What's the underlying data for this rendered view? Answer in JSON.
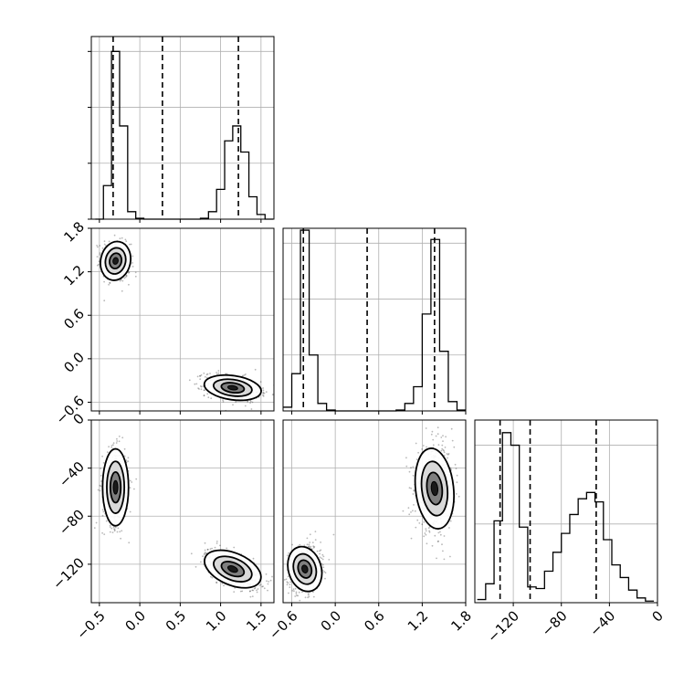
{
  "chart_data": {
    "type": "corner",
    "grid": true,
    "parameters": [
      {
        "ticks": [
          -0.5,
          0.0,
          0.5,
          1.0,
          1.5
        ],
        "tick_labels": [
          "−0.5",
          "0.0",
          "0.5",
          "1.0",
          "1.5"
        ],
        "range": [
          -0.6,
          1.66
        ]
      },
      {
        "ticks": [
          -0.6,
          0.0,
          0.6,
          1.2,
          1.8
        ],
        "tick_labels": [
          "−0.6",
          "0.0",
          "0.6",
          "1.2",
          "1.8"
        ],
        "range": [
          -0.72,
          1.8
        ]
      },
      {
        "ticks": [
          -120,
          -80,
          -40,
          0
        ],
        "tick_labels": [
          "−120",
          "−80",
          "−40",
          "0"
        ],
        "range": [
          -152,
          0
        ]
      }
    ],
    "histograms": [
      {
        "parameter": 0,
        "bins": [
          -0.55,
          -0.45,
          -0.35,
          -0.25,
          -0.15,
          -0.05,
          0.05,
          0.15,
          0.25,
          0.35,
          0.45,
          0.55,
          0.65,
          0.75,
          0.85,
          0.95,
          1.05,
          1.15,
          1.25,
          1.35,
          1.45,
          1.55,
          1.65
        ],
        "values": [
          0,
          0.18,
          0.9,
          0.5,
          0.04,
          0.005,
          0,
          0,
          0,
          0,
          0,
          0,
          0,
          0.005,
          0.04,
          0.16,
          0.42,
          0.5,
          0.36,
          0.12,
          0.025,
          0
        ],
        "quantile_lines": [
          -0.33,
          0.28,
          1.22
        ],
        "ticks": [
          0,
          0.3,
          0.6,
          0.9
        ]
      },
      {
        "parameter": 1,
        "bins": [
          -0.72,
          -0.6,
          -0.48,
          -0.36,
          -0.24,
          -0.12,
          0.0,
          0.12,
          0.24,
          0.36,
          0.48,
          0.6,
          0.72,
          0.84,
          0.96,
          1.08,
          1.2,
          1.32,
          1.44,
          1.56,
          1.68,
          1.8
        ],
        "values": [
          0.02,
          0.2,
          0.97,
          0.3,
          0.04,
          0.005,
          0,
          0,
          0,
          0,
          0,
          0,
          0,
          0.005,
          0.04,
          0.13,
          0.52,
          0.92,
          0.32,
          0.05,
          0.005
        ],
        "quantile_lines": [
          -0.44,
          0.44,
          1.37
        ],
        "ticks": [
          0,
          0.3,
          0.6,
          0.9
        ]
      },
      {
        "parameter": 2,
        "bins": [
          -150,
          -143,
          -136,
          -129,
          -122,
          -115,
          -108,
          -101,
          -94,
          -87,
          -80,
          -73,
          -66,
          -59,
          -52,
          -45,
          -38,
          -31,
          -24,
          -17,
          -10,
          -3
        ],
        "values": [
          0.01,
          0.06,
          0.26,
          0.54,
          0.5,
          0.24,
          0.05,
          0.045,
          0.1,
          0.16,
          0.22,
          0.28,
          0.33,
          0.35,
          0.32,
          0.2,
          0.12,
          0.08,
          0.04,
          0.015,
          0.005
        ],
        "quantile_lines": [
          -131,
          -106,
          -51
        ],
        "ticks": [
          0,
          0.25,
          0.5
        ]
      }
    ],
    "scatter_panels": [
      {
        "x_param": 0,
        "y_param": 1,
        "clusters": [
          {
            "cx": -0.3,
            "cy": 1.35,
            "sx": 0.09,
            "sy": 0.14,
            "rho": -0.15,
            "n": 450
          },
          {
            "cx": 1.15,
            "cy": -0.4,
            "sx": 0.17,
            "sy": 0.09,
            "rho": -0.3,
            "n": 600
          }
        ]
      },
      {
        "x_param": 0,
        "y_param": 2,
        "clusters": [
          {
            "cx": -0.3,
            "cy": -56,
            "sx": 0.08,
            "sy": 16,
            "rho": 0.0,
            "n": 500
          },
          {
            "cx": 1.15,
            "cy": -124,
            "sx": 0.17,
            "sy": 8,
            "rho": -0.6,
            "n": 600
          }
        ]
      },
      {
        "x_param": 1,
        "y_param": 2,
        "clusters": [
          {
            "cx": -0.42,
            "cy": -124,
            "sx": 0.11,
            "sy": 10,
            "rho": 0.2,
            "n": 550
          },
          {
            "cx": 1.37,
            "cy": -57,
            "sx": 0.13,
            "sy": 17,
            "rho": 0.05,
            "n": 650
          }
        ]
      }
    ]
  }
}
